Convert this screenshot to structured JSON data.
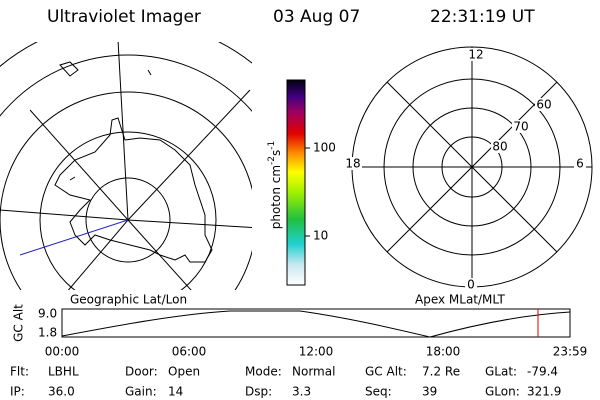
{
  "header": {
    "title": "Ultraviolet Imager",
    "date": "03 Aug 07",
    "time": "22:31:19 UT"
  },
  "colorbar": {
    "label": "photon cm",
    "exp1": "-2",
    "unit2": "s",
    "exp2": "-1",
    "ticks": [
      "100",
      "10"
    ]
  },
  "polar": {
    "mlt": [
      "12",
      "18",
      "6",
      "0"
    ],
    "mlat": [
      "60",
      "70",
      "80"
    ]
  },
  "timeline": {
    "left_label": "Geographic Lat/Lon",
    "right_label": "Apex MLat/MLT",
    "axis_label": "GC Alt",
    "y_labels": [
      "9.0",
      "1.8"
    ],
    "x_labels": [
      "00:00",
      "06:00",
      "12:00",
      "18:00",
      "23:59"
    ]
  },
  "footer": {
    "rows": [
      [
        [
          "Flt:",
          "LBHL"
        ],
        [
          "Door:",
          "Open"
        ],
        [
          "Mode:",
          "Normal"
        ],
        [
          "GC Alt:",
          "7.2 Re"
        ],
        [
          "GLat:",
          "-79.4"
        ]
      ],
      [
        [
          "IP:",
          "36.0"
        ],
        [
          "Gain:",
          "14"
        ],
        [
          "Dsp:",
          "3.3"
        ],
        [
          "Seq:",
          "39"
        ],
        [
          "GLon:",
          "321.9"
        ]
      ]
    ]
  }
}
